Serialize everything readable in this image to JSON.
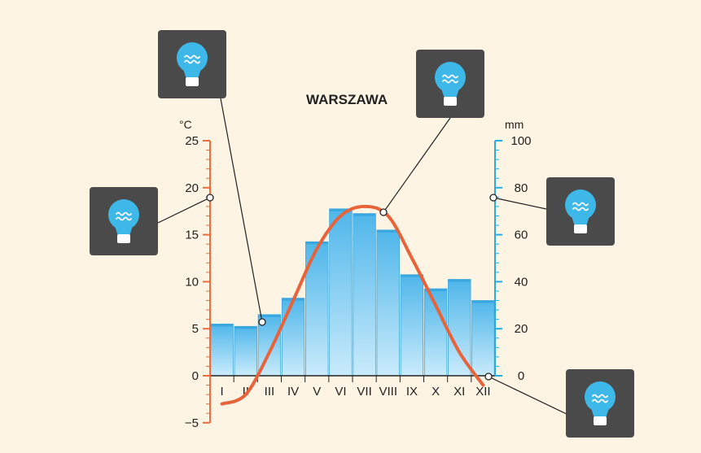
{
  "chart_data": {
    "type": "bar+line",
    "title": "WARSZAWA",
    "categories": [
      "I",
      "II",
      "III",
      "IV",
      "V",
      "VI",
      "VII",
      "VIII",
      "IX",
      "X",
      "XI",
      "XII"
    ],
    "precipitation_mm": [
      22,
      21,
      26,
      33,
      57,
      71,
      69,
      62,
      43,
      37,
      41,
      32
    ],
    "temperature_c": [
      -3.0,
      -2.0,
      2.5,
      8.0,
      13.5,
      17.0,
      18.0,
      17.0,
      12.5,
      7.5,
      2.5,
      -1.0
    ],
    "left_axis": {
      "unit": "°C",
      "range": [
        -5,
        25
      ],
      "ticks": [
        -5,
        0,
        5,
        10,
        15,
        20,
        25
      ],
      "tick_labels": [
        "−5",
        "0",
        "5",
        "10",
        "15",
        "20",
        "25"
      ],
      "color": "#f26b3a"
    },
    "right_axis": {
      "unit": "mm",
      "range": [
        0,
        100
      ],
      "ticks": [
        0,
        20,
        40,
        60,
        80,
        100
      ],
      "color": "#29abe2"
    },
    "colors": {
      "bar": "#6cc3ee",
      "bar_dark": "#3aa8e0",
      "line": "#e8623a",
      "callout_box": "#4a4a4a",
      "bulb": "#3db8e8"
    },
    "callouts": [
      {
        "id": "left-axis",
        "icon": "lightbulb-icon",
        "target": "temperature-axis"
      },
      {
        "id": "march-point",
        "icon": "lightbulb-icon",
        "target": "precipitation-bar-III"
      },
      {
        "id": "temperature-line",
        "icon": "lightbulb-icon",
        "target": "temperature-curve"
      },
      {
        "id": "right-axis",
        "icon": "lightbulb-icon",
        "target": "precipitation-axis"
      },
      {
        "id": "december-point",
        "icon": "lightbulb-icon",
        "target": "temperature-december"
      }
    ]
  }
}
